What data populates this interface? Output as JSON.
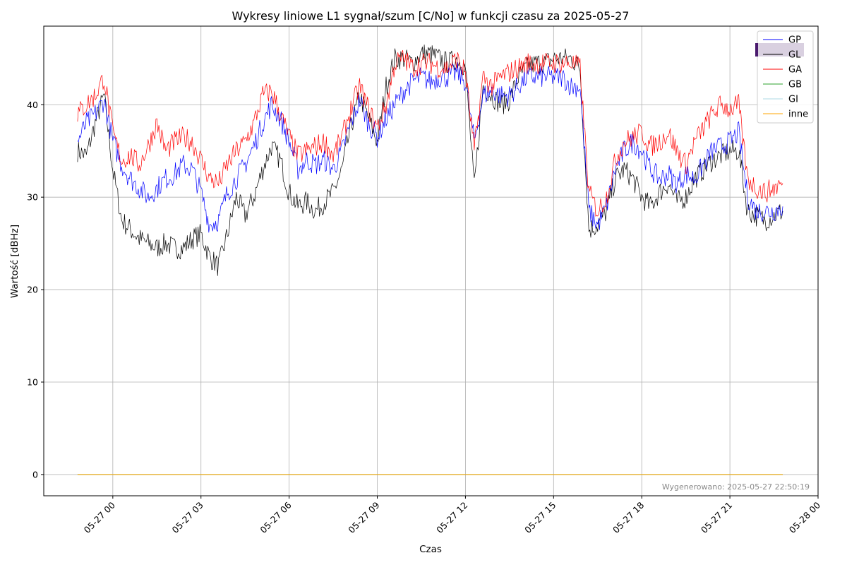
{
  "chart_data": {
    "type": "line",
    "title": "Wykresy liniowe L1 sygnał/szum [C/No] w funkcji czasu za 2025-05-27",
    "xlabel": "Czas",
    "ylabel": "Wartość [dBHz]",
    "footnote": "Wygenerowano: 2025-05-27 22:50:19",
    "grid": true,
    "legend_position": "top-right",
    "x_unit": "hours since 2025-05-27 00:00",
    "xlim": [
      -2.35,
      24.0
    ],
    "ylim": [
      -2.3,
      48.5
    ],
    "x_ticks": [
      0,
      3,
      6,
      9,
      12,
      15,
      18,
      21,
      24
    ],
    "x_tick_labels": [
      "05-27 00",
      "05-27 03",
      "05-27 06",
      "05-27 09",
      "05-27 12",
      "05-27 15",
      "05-27 18",
      "05-27 21",
      "05-28 00"
    ],
    "y_ticks": [
      0,
      10,
      20,
      30,
      40
    ],
    "y_tick_labels": [
      "0",
      "10",
      "20",
      "30",
      "40"
    ],
    "x": [
      -1.2,
      -0.9,
      -0.6,
      -0.3,
      0.0,
      0.3,
      0.6,
      0.9,
      1.2,
      1.5,
      1.8,
      2.1,
      2.4,
      2.7,
      3.0,
      3.3,
      3.6,
      3.9,
      4.2,
      4.5,
      4.8,
      5.1,
      5.4,
      5.7,
      6.0,
      6.3,
      6.6,
      6.9,
      7.2,
      7.5,
      7.8,
      8.1,
      8.4,
      8.7,
      9.0,
      9.3,
      9.6,
      9.9,
      10.2,
      10.5,
      10.8,
      11.1,
      11.4,
      11.7,
      12.0,
      12.3,
      12.6,
      12.9,
      13.2,
      13.5,
      13.8,
      14.1,
      14.4,
      14.7,
      15.0,
      15.3,
      15.6,
      15.9,
      16.2,
      16.5,
      16.8,
      17.1,
      17.4,
      17.7,
      18.0,
      18.3,
      18.6,
      18.9,
      19.2,
      19.5,
      19.8,
      20.1,
      20.4,
      20.7,
      21.0,
      21.3,
      21.6,
      21.9,
      22.2,
      22.5,
      22.8
    ],
    "series": [
      {
        "name": "GP",
        "color": "#0000ff",
        "values": [
          36.0,
          38.0,
          39.0,
          40.5,
          36.0,
          33.5,
          32.0,
          31.0,
          30.0,
          31.0,
          32.0,
          32.5,
          33.5,
          33.0,
          30.5,
          27.0,
          27.5,
          30.5,
          32.0,
          33.5,
          35.5,
          38.0,
          40.0,
          38.5,
          36.0,
          33.0,
          34.0,
          33.5,
          34.0,
          33.0,
          35.0,
          38.0,
          40.5,
          38.0,
          36.5,
          38.5,
          40.0,
          41.5,
          42.5,
          43.0,
          42.5,
          43.0,
          43.0,
          43.5,
          42.5,
          36.0,
          41.0,
          41.5,
          41.0,
          41.0,
          42.0,
          43.0,
          43.0,
          43.0,
          43.0,
          43.0,
          42.0,
          42.0,
          28.5,
          27.0,
          29.0,
          33.0,
          35.0,
          36.0,
          35.0,
          33.0,
          32.0,
          32.5,
          31.5,
          32.5,
          32.0,
          33.5,
          35.0,
          35.5,
          36.0,
          37.0,
          30.0,
          28.5,
          28.5,
          28.5,
          29.0
        ]
      },
      {
        "name": "GL",
        "color": "#000000",
        "values": [
          35.0,
          34.5,
          38.0,
          41.0,
          33.0,
          27.5,
          26.5,
          25.5,
          25.0,
          24.5,
          25.0,
          24.5,
          24.5,
          25.5,
          26.0,
          23.5,
          22.5,
          26.0,
          30.0,
          28.0,
          30.0,
          33.0,
          35.5,
          34.0,
          30.5,
          29.0,
          29.5,
          28.5,
          29.5,
          30.5,
          33.0,
          37.5,
          41.0,
          38.5,
          36.0,
          42.0,
          45.0,
          45.0,
          44.5,
          45.5,
          45.5,
          45.0,
          44.5,
          45.0,
          44.0,
          31.0,
          42.0,
          41.0,
          40.0,
          40.5,
          43.0,
          44.0,
          44.5,
          44.5,
          45.0,
          45.0,
          45.0,
          44.0,
          26.5,
          27.0,
          28.5,
          32.0,
          33.0,
          32.0,
          30.0,
          29.0,
          30.5,
          31.5,
          29.5,
          30.0,
          32.0,
          33.0,
          34.0,
          34.5,
          35.0,
          35.0,
          28.5,
          28.0,
          27.5,
          28.0,
          28.5
        ]
      },
      {
        "name": "GA",
        "color": "#ff0000",
        "values": [
          39.0,
          40.0,
          41.0,
          43.0,
          37.0,
          34.0,
          34.5,
          33.5,
          35.5,
          38.0,
          35.0,
          36.0,
          36.5,
          36.0,
          34.0,
          32.0,
          31.5,
          33.5,
          35.0,
          36.0,
          38.0,
          41.0,
          41.5,
          39.0,
          36.5,
          34.5,
          35.0,
          35.5,
          36.0,
          34.5,
          36.5,
          39.5,
          42.0,
          39.5,
          37.5,
          40.0,
          44.5,
          45.0,
          44.0,
          44.5,
          44.5,
          44.0,
          44.0,
          45.0,
          43.5,
          35.0,
          43.0,
          42.0,
          43.0,
          43.5,
          44.0,
          44.5,
          44.5,
          44.5,
          44.5,
          44.5,
          44.5,
          44.0,
          30.5,
          28.5,
          30.0,
          34.0,
          36.0,
          36.5,
          37.0,
          35.5,
          36.0,
          37.0,
          35.0,
          33.5,
          36.0,
          37.5,
          39.0,
          40.0,
          39.5,
          40.0,
          32.0,
          31.0,
          30.5,
          31.0,
          31.5
        ]
      },
      {
        "name": "GB",
        "color": "#2ca02c",
        "values": [
          0,
          0,
          0,
          0,
          0,
          0,
          0,
          0,
          0,
          0,
          0,
          0,
          0,
          0,
          0,
          0,
          0,
          0,
          0,
          0,
          0,
          0,
          0,
          0,
          0,
          0,
          0,
          0,
          0,
          0,
          0,
          0,
          0,
          0,
          0,
          0,
          0,
          0,
          0,
          0,
          0,
          0,
          0,
          0,
          0,
          0,
          0,
          0,
          0,
          0,
          0,
          0,
          0,
          0,
          0,
          0,
          0,
          0,
          0,
          0,
          0,
          0,
          0,
          0,
          0,
          0,
          0,
          0,
          0,
          0,
          0,
          0,
          0,
          0,
          0,
          0,
          0,
          0,
          0,
          0,
          0
        ]
      },
      {
        "name": "GI",
        "color": "#add8e6",
        "values": [
          0,
          0,
          0,
          0,
          0,
          0,
          0,
          0,
          0,
          0,
          0,
          0,
          0,
          0,
          0,
          0,
          0,
          0,
          0,
          0,
          0,
          0,
          0,
          0,
          0,
          0,
          0,
          0,
          0,
          0,
          0,
          0,
          0,
          0,
          0,
          0,
          0,
          0,
          0,
          0,
          0,
          0,
          0,
          0,
          0,
          0,
          0,
          0,
          0,
          0,
          0,
          0,
          0,
          0,
          0,
          0,
          0,
          0,
          0,
          0,
          0,
          0,
          0,
          0,
          0,
          0,
          0,
          0,
          0,
          0,
          0,
          0,
          0,
          0,
          0,
          0,
          0,
          0,
          0,
          0,
          0
        ]
      },
      {
        "name": "inne",
        "color": "#ffa500",
        "values": [
          0,
          0,
          0,
          0,
          0,
          0,
          0,
          0,
          0,
          0,
          0,
          0,
          0,
          0,
          0,
          0,
          0,
          0,
          0,
          0,
          0,
          0,
          0,
          0,
          0,
          0,
          0,
          0,
          0,
          0,
          0,
          0,
          0,
          0,
          0,
          0,
          0,
          0,
          0,
          0,
          0,
          0,
          0,
          0,
          0,
          0,
          0,
          0,
          0,
          0,
          0,
          0,
          0,
          0,
          0,
          0,
          0,
          0,
          0,
          0,
          0,
          0,
          0,
          0,
          0,
          0,
          0,
          0,
          0,
          0,
          0,
          0,
          0,
          0,
          0,
          0,
          0,
          0,
          0,
          0,
          0
        ]
      }
    ]
  }
}
